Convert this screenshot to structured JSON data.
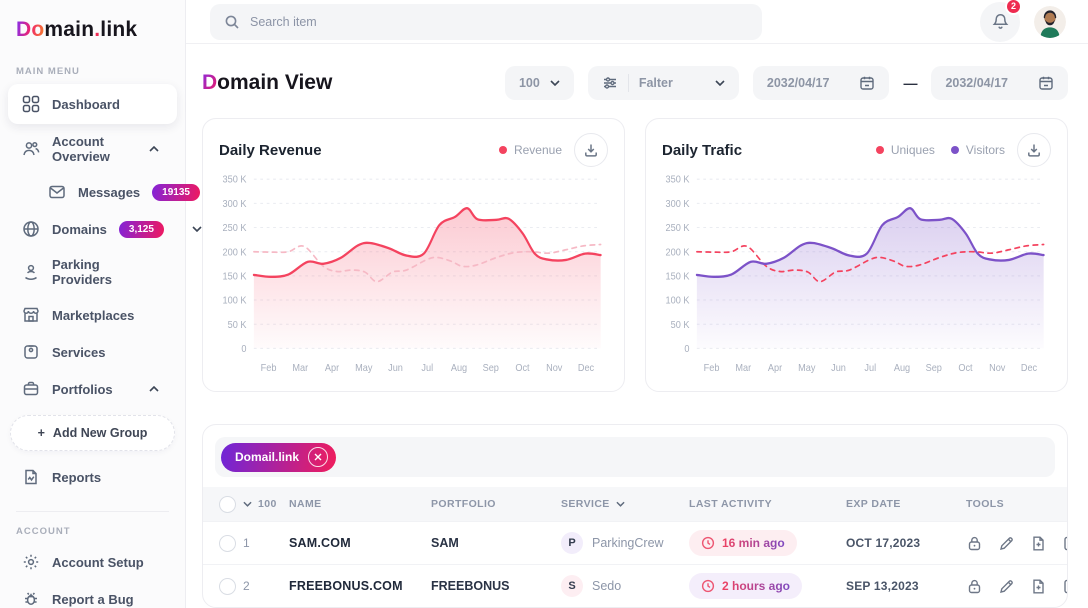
{
  "logo": {
    "grad": "Do",
    "mid": "main",
    "dot": ".",
    "tail": "link"
  },
  "topbar": {
    "search_placeholder": "Search item",
    "notification_count": "2"
  },
  "sidebar": {
    "section_main": "MAIN MENU",
    "section_account": "ACCOUNT",
    "items": [
      {
        "label": "Dashboard"
      },
      {
        "label": "Account Overview"
      },
      {
        "label": "Messages",
        "badge": "19135"
      },
      {
        "label": "Domains",
        "badge": "3,125"
      },
      {
        "label": "Parking Providers"
      },
      {
        "label": "Marketplaces"
      },
      {
        "label": "Services"
      },
      {
        "label": "Portfolios"
      },
      {
        "label": "Add New Group",
        "plus": "+"
      },
      {
        "label": "Reports"
      },
      {
        "label": "Account Setup"
      },
      {
        "label": "Report a Bug"
      }
    ]
  },
  "header": {
    "title_grad": "D",
    "title_rest": "omain View",
    "page_size": "100",
    "filter_label": "Falter",
    "date_from": "2032/04/17",
    "date_separator": "—",
    "date_to": "2032/04/17"
  },
  "chart_data": [
    {
      "type": "area",
      "title": "Daily Revenue",
      "legend": [
        {
          "label": "Revenue",
          "color": "#f4435f"
        }
      ],
      "y_max": 350,
      "y_ticks": [
        "0",
        "50 K",
        "100 K",
        "150 K",
        "200 K",
        "250 K",
        "300 K",
        "350 K"
      ],
      "months": [
        "Feb",
        "Mar",
        "Apr",
        "May",
        "Jun",
        "Jul",
        "Aug",
        "Sep",
        "Oct",
        "Nov",
        "Dec"
      ],
      "series": [
        {
          "name": "",
          "color": "#f6b9c5",
          "style": "dashed",
          "fill": false,
          "points": [
            [
              0,
              200
            ],
            [
              0.6,
              199
            ],
            [
              1,
              200
            ],
            [
              1.45,
              211
            ],
            [
              2,
              170
            ],
            [
              2.4,
              159
            ],
            [
              2.8,
              162
            ],
            [
              3.2,
              158
            ],
            [
              3.55,
              138
            ],
            [
              4,
              158
            ],
            [
              4.4,
              162
            ],
            [
              5,
              184
            ],
            [
              5.3,
              188
            ],
            [
              5.7,
              180
            ],
            [
              6,
              170
            ],
            [
              6.4,
              172
            ],
            [
              7,
              188
            ],
            [
              7.5,
              198
            ],
            [
              8,
              200
            ],
            [
              8.5,
              197
            ],
            [
              9,
              204
            ],
            [
              9.5,
              212
            ],
            [
              10,
              215
            ]
          ]
        },
        {
          "name": "Revenue",
          "color": "#f4435f",
          "style": "solid",
          "fill": true,
          "points": [
            [
              0,
              152
            ],
            [
              0.5,
              148
            ],
            [
              1,
              153
            ],
            [
              1.55,
              179
            ],
            [
              2,
              175
            ],
            [
              2.5,
              187
            ],
            [
              3,
              213
            ],
            [
              3.35,
              218
            ],
            [
              3.9,
              207
            ],
            [
              4.4,
              192
            ],
            [
              4.9,
              196
            ],
            [
              5.35,
              255
            ],
            [
              5.8,
              272
            ],
            [
              6.15,
              290
            ],
            [
              6.45,
              267
            ],
            [
              7,
              266
            ],
            [
              7.35,
              268
            ],
            [
              7.75,
              238
            ],
            [
              8.1,
              196
            ],
            [
              8.45,
              184
            ],
            [
              9,
              183
            ],
            [
              9.55,
              196
            ],
            [
              10,
              193
            ]
          ]
        }
      ]
    },
    {
      "type": "area",
      "title": "Daily Trafic",
      "legend": [
        {
          "label": "Uniques",
          "color": "#f4435f"
        },
        {
          "label": "Visitors",
          "color": "#7c52c8"
        }
      ],
      "y_max": 350,
      "y_ticks": [
        "0",
        "50 K",
        "100 K",
        "150 K",
        "200 K",
        "250 K",
        "300 K",
        "350 K"
      ],
      "months": [
        "Feb",
        "Mar",
        "Apr",
        "May",
        "Jun",
        "Jul",
        "Aug",
        "Sep",
        "Oct",
        "Nov",
        "Dec"
      ],
      "series": [
        {
          "name": "Uniques",
          "color": "#f4435f",
          "style": "dashed",
          "fill": false,
          "points": [
            [
              0,
              200
            ],
            [
              0.6,
              199
            ],
            [
              1,
              200
            ],
            [
              1.45,
              211
            ],
            [
              2,
              170
            ],
            [
              2.4,
              159
            ],
            [
              2.8,
              162
            ],
            [
              3.2,
              158
            ],
            [
              3.55,
              138
            ],
            [
              4,
              158
            ],
            [
              4.4,
              162
            ],
            [
              5,
              184
            ],
            [
              5.3,
              188
            ],
            [
              5.7,
              180
            ],
            [
              6,
              170
            ],
            [
              6.4,
              172
            ],
            [
              7,
              188
            ],
            [
              7.5,
              198
            ],
            [
              8,
              200
            ],
            [
              8.5,
              197
            ],
            [
              9,
              204
            ],
            [
              9.5,
              212
            ],
            [
              10,
              215
            ]
          ]
        },
        {
          "name": "Visitors",
          "color": "#7c52c8",
          "style": "solid",
          "fill": true,
          "points": [
            [
              0,
              152
            ],
            [
              0.5,
              148
            ],
            [
              1,
              153
            ],
            [
              1.55,
              179
            ],
            [
              2,
              175
            ],
            [
              2.5,
              187
            ],
            [
              3,
              213
            ],
            [
              3.35,
              218
            ],
            [
              3.9,
              207
            ],
            [
              4.4,
              192
            ],
            [
              4.9,
              196
            ],
            [
              5.35,
              255
            ],
            [
              5.8,
              272
            ],
            [
              6.15,
              290
            ],
            [
              6.45,
              267
            ],
            [
              7,
              266
            ],
            [
              7.35,
              268
            ],
            [
              7.75,
              238
            ],
            [
              8.1,
              196
            ],
            [
              8.45,
              184
            ],
            [
              9,
              183
            ],
            [
              9.55,
              196
            ],
            [
              10,
              193
            ]
          ]
        }
      ]
    }
  ],
  "table": {
    "tag": "Domail.link",
    "page_size": "100",
    "columns": {
      "name": "NAME",
      "portfolio": "PORTFOLIO",
      "service": "SERVICE",
      "last_activity": "LAST ACTIVITY",
      "exp_date": "EXP DATE",
      "tools": "TOOLS"
    },
    "rows": [
      {
        "num": "1",
        "name": "SAM.COM",
        "portfolio": "SAM",
        "service_initial": "P",
        "service_avatar_bg": "#f2edfb",
        "service": "ParkingCrew",
        "last_activity": "16 min ago",
        "activity_bg": "#fdeef1",
        "exp_date": "OCT 17,2023"
      },
      {
        "num": "2",
        "name": "FREEBONUS.COM",
        "portfolio": "FREEBONUS",
        "service_initial": "S",
        "service_avatar_bg": "#fdeef2",
        "service": "Sedo",
        "last_activity": "2 hours ago",
        "activity_bg": "#f4eefb",
        "exp_date": "SEP 13,2023"
      }
    ]
  },
  "colors": {
    "brand_gradient_start": "#7b2ff7",
    "brand_gradient_end": "#f0236e",
    "badge_gradient_start": "#8324d8",
    "badge_gradient_end": "#ef195f",
    "notification_red": "#ee2b50",
    "revenue_red": "#f4435f",
    "visitors_purple": "#7c52c8",
    "dashed_pink": "#f6b9c5"
  }
}
